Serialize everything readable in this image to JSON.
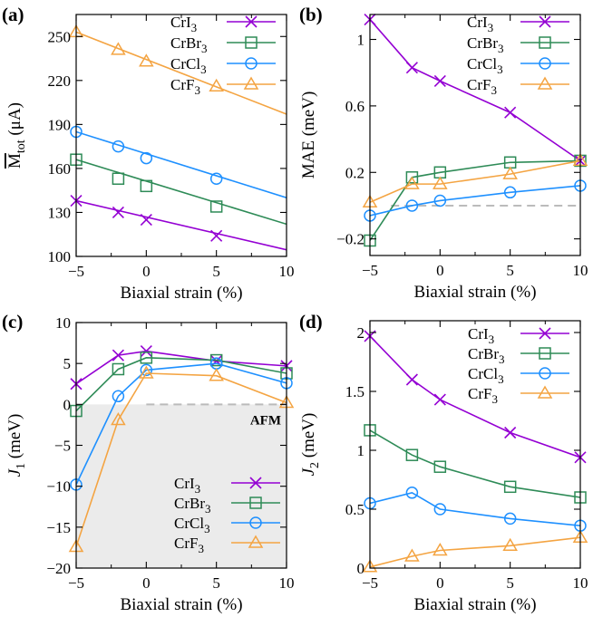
{
  "chart_data": [
    {
      "panel": "(a)",
      "type": "line",
      "xlabel": "Biaxial strain (%)",
      "ylabel_main": "M",
      "ylabel_sub": "tot",
      "ylabel_unit": "(μA)",
      "xlim": [
        -5,
        10
      ],
      "ylim": [
        100,
        265
      ],
      "xticks": [
        -5,
        0,
        5,
        10
      ],
      "yticks": [
        100,
        130,
        160,
        190,
        220,
        250
      ],
      "legend_position": "top-right",
      "series": [
        {
          "name": "CrI3",
          "legend_main": "CrI",
          "legend_sub": "3",
          "color": "#9400d3",
          "marker": "x",
          "x": [
            -5,
            -2,
            0,
            5
          ],
          "y": [
            138,
            130,
            125,
            114
          ],
          "line_x": [
            -5,
            10
          ],
          "line_y": [
            138,
            104.5
          ]
        },
        {
          "name": "CrBr3",
          "legend_main": "CrBr",
          "legend_sub": "3",
          "color": "#2e8b57",
          "marker": "square",
          "x": [
            -5,
            -2,
            0,
            5
          ],
          "y": [
            166,
            153,
            148,
            134
          ],
          "line_x": [
            -5,
            10
          ],
          "line_y": [
            166,
            122
          ]
        },
        {
          "name": "CrCl3",
          "legend_main": "CrCl",
          "legend_sub": "3",
          "color": "#1e90ff",
          "marker": "circle",
          "x": [
            -5,
            -2,
            0,
            5
          ],
          "y": [
            185,
            175,
            167,
            153
          ],
          "line_x": [
            -5,
            10
          ],
          "line_y": [
            185,
            140
          ]
        },
        {
          "name": "CrF3",
          "legend_main": "CrF",
          "legend_sub": "3",
          "color": "#f4a442",
          "marker": "triangle",
          "x": [
            -5,
            -2,
            0,
            5
          ],
          "y": [
            253,
            241,
            233,
            216
          ],
          "line_x": [
            -5,
            10
          ],
          "line_y": [
            253,
            197
          ]
        }
      ]
    },
    {
      "panel": "(b)",
      "type": "line",
      "xlabel": "Biaxial strain (%)",
      "ylabel": "MAE (meV)",
      "xlim": [
        -5,
        10
      ],
      "ylim": [
        -0.3,
        1.15
      ],
      "xticks": [
        -5,
        0,
        5,
        10
      ],
      "yticks": [
        -0.2,
        0.2,
        0.6,
        1
      ],
      "ytick_labels": [
        "−0.2",
        "0.2",
        "0.6",
        "1"
      ],
      "zero_line": {
        "y": 0,
        "from_x": -3.5,
        "to_x": 10,
        "style": "dashed",
        "color": "#bbbbbb"
      },
      "legend_position": "top-right",
      "series": [
        {
          "name": "CrI3",
          "legend_main": "CrI",
          "legend_sub": "3",
          "color": "#9400d3",
          "marker": "x",
          "x": [
            -5,
            -2,
            0,
            5,
            10
          ],
          "y": [
            1.12,
            0.83,
            0.75,
            0.56,
            0.27
          ]
        },
        {
          "name": "CrBr3",
          "legend_main": "CrBr",
          "legend_sub": "3",
          "color": "#2e8b57",
          "marker": "square",
          "x": [
            -5,
            -2,
            0,
            5,
            10
          ],
          "y": [
            -0.21,
            0.17,
            0.2,
            0.26,
            0.27
          ]
        },
        {
          "name": "CrCl3",
          "legend_main": "CrCl",
          "legend_sub": "3",
          "color": "#1e90ff",
          "marker": "circle",
          "x": [
            -5,
            -2,
            0,
            5,
            10
          ],
          "y": [
            -0.06,
            0.0,
            0.03,
            0.08,
            0.12
          ]
        },
        {
          "name": "CrF3",
          "legend_main": "CrF",
          "legend_sub": "3",
          "color": "#f4a442",
          "marker": "triangle",
          "x": [
            -5,
            -2,
            0,
            5,
            10
          ],
          "y": [
            0.02,
            0.13,
            0.13,
            0.19,
            0.27
          ]
        }
      ]
    },
    {
      "panel": "(c)",
      "type": "line",
      "xlabel": "Biaxial strain (%)",
      "ylabel_main": "J",
      "ylabel_sub": "1",
      "ylabel_unit": "(meV)",
      "xlim": [
        -5,
        10
      ],
      "ylim": [
        -20,
        10
      ],
      "xticks": [
        -5,
        0,
        5,
        10
      ],
      "yticks": [
        -20,
        -15,
        -10,
        -5,
        0,
        5,
        10
      ],
      "ytick_labels": [
        "−20",
        "−15",
        "−10",
        "−5",
        "0",
        "5",
        "10"
      ],
      "annotation": "AFM",
      "shaded_region": {
        "from_y": -20,
        "to_y": 0,
        "color": "#ebebeb"
      },
      "zero_line": {
        "y": 0,
        "from_x": 0,
        "to_x": 10,
        "style": "dashed",
        "color": "#bbbbbb"
      },
      "legend_position": "bottom-right",
      "series": [
        {
          "name": "CrI3",
          "legend_main": "CrI",
          "legend_sub": "3",
          "color": "#9400d3",
          "marker": "x",
          "x": [
            -5,
            -2,
            0,
            5,
            10
          ],
          "y": [
            2.5,
            6.0,
            6.5,
            5.3,
            4.7
          ]
        },
        {
          "name": "CrBr3",
          "legend_main": "CrBr",
          "legend_sub": "3",
          "color": "#2e8b57",
          "marker": "square",
          "x": [
            -5,
            -2,
            0,
            5,
            10
          ],
          "y": [
            -0.8,
            4.3,
            5.7,
            5.4,
            3.8
          ]
        },
        {
          "name": "CrCl3",
          "legend_main": "CrCl",
          "legend_sub": "3",
          "color": "#1e90ff",
          "marker": "circle",
          "x": [
            -5,
            -2,
            0,
            5,
            10
          ],
          "y": [
            -9.8,
            1.0,
            4.2,
            5.0,
            2.6
          ]
        },
        {
          "name": "CrF3",
          "legend_main": "CrF",
          "legend_sub": "3",
          "color": "#f4a442",
          "marker": "triangle",
          "x": [
            -5,
            -2,
            0,
            5,
            10
          ],
          "y": [
            -17.4,
            -1.9,
            3.8,
            3.5,
            0.2
          ]
        }
      ]
    },
    {
      "panel": "(d)",
      "type": "line",
      "xlabel": "Biaxial strain (%)",
      "ylabel_main": "J",
      "ylabel_sub": "2",
      "ylabel_unit": "(meV)",
      "xlim": [
        -5,
        10
      ],
      "ylim": [
        0,
        2.1
      ],
      "xticks": [
        -5,
        0,
        5,
        10
      ],
      "yticks": [
        0,
        0.5,
        1,
        1.5,
        2
      ],
      "legend_position": "top-right",
      "series": [
        {
          "name": "CrI3",
          "legend_main": "CrI",
          "legend_sub": "3",
          "color": "#9400d3",
          "marker": "x",
          "x": [
            -5,
            -2,
            0,
            5,
            10
          ],
          "y": [
            1.97,
            1.6,
            1.43,
            1.15,
            0.94
          ]
        },
        {
          "name": "CrBr3",
          "legend_main": "CrBr",
          "legend_sub": "3",
          "color": "#2e8b57",
          "marker": "square",
          "x": [
            -5,
            -2,
            0,
            5,
            10
          ],
          "y": [
            1.17,
            0.96,
            0.86,
            0.69,
            0.6
          ]
        },
        {
          "name": "CrCl3",
          "legend_main": "CrCl",
          "legend_sub": "3",
          "color": "#1e90ff",
          "marker": "circle",
          "x": [
            -5,
            -2,
            0,
            5,
            10
          ],
          "y": [
            0.55,
            0.64,
            0.5,
            0.42,
            0.36
          ]
        },
        {
          "name": "CrF3",
          "legend_main": "CrF",
          "legend_sub": "3",
          "color": "#f4a442",
          "marker": "triangle",
          "x": [
            -5,
            -2,
            0,
            5,
            10
          ],
          "y": [
            0.01,
            0.1,
            0.15,
            0.19,
            0.26
          ]
        }
      ]
    }
  ]
}
